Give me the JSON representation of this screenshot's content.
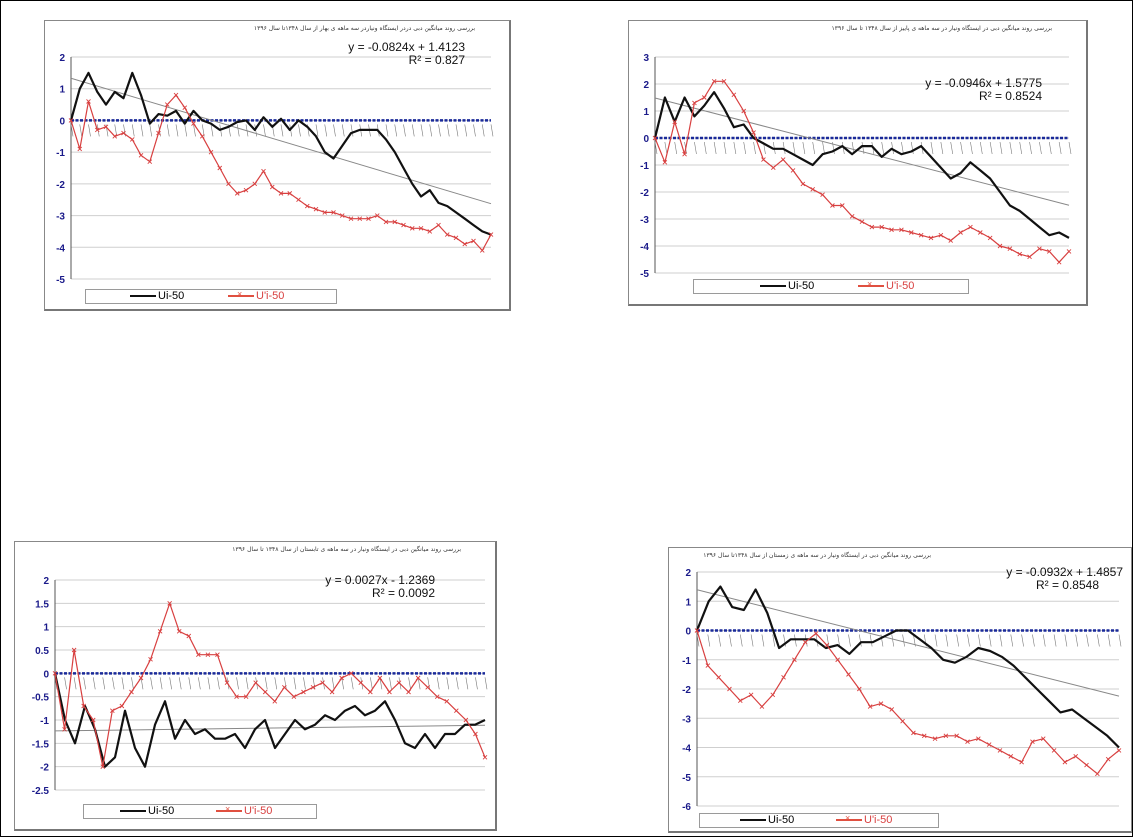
{
  "chart_data": [
    {
      "type": "line",
      "title": "بررسی روند میانگین دبی دردر ایستگاه ونیاردر سه ماهه ی بهار از سال ۱۳۴۸تا سال ۱۳۹۶",
      "ylim": [
        -5,
        2
      ],
      "yticks": [
        "2",
        "1",
        "0",
        "-1",
        "-2",
        "-3",
        "-4",
        "-5"
      ],
      "equation": "y = -0.0824x + 1.4123",
      "r2": "R² = 0.827",
      "trend": {
        "slope": -0.0824,
        "intercept": 1.4123
      },
      "grid": true,
      "legend": "bottom",
      "series": [
        {
          "name": "Ui-50",
          "color": "#111111",
          "values": [
            0,
            1.0,
            1.5,
            0.9,
            0.5,
            0.9,
            0.7,
            1.5,
            0.8,
            -0.1,
            0.2,
            0.15,
            0.3,
            -0.1,
            0.3,
            0.0,
            -0.1,
            -0.3,
            -0.2,
            -0.05,
            0.0,
            -0.3,
            0.1,
            -0.2,
            0.05,
            -0.3,
            0.0,
            -0.2,
            -0.5,
            -1.0,
            -1.2,
            -0.8,
            -0.4,
            -0.3,
            -0.3,
            -0.3,
            -0.6,
            -1.0,
            -1.5,
            -2.0,
            -2.4,
            -2.2,
            -2.6,
            -2.7,
            -2.9,
            -3.1,
            -3.3,
            -3.5,
            -3.6
          ]
        },
        {
          "name": "U'i-50",
          "color": "#d84040",
          "values": [
            0,
            -0.9,
            0.6,
            -0.3,
            -0.2,
            -0.5,
            -0.4,
            -0.6,
            -1.1,
            -1.3,
            -0.4,
            0.5,
            0.8,
            0.4,
            -0.1,
            -0.5,
            -1.0,
            -1.5,
            -2.0,
            -2.3,
            -2.2,
            -2.0,
            -1.6,
            -2.1,
            -2.3,
            -2.3,
            -2.5,
            -2.7,
            -2.8,
            -2.9,
            -2.9,
            -3.0,
            -3.1,
            -3.1,
            -3.1,
            -3.0,
            -3.2,
            -3.2,
            -3.3,
            -3.4,
            -3.4,
            -3.5,
            -3.3,
            -3.6,
            -3.7,
            -3.9,
            -3.8,
            -4.1,
            -3.6
          ]
        }
      ]
    },
    {
      "type": "line",
      "title": "بررسی روند میانگین دبی در ایستگاه ونیار در سه ماهه ی پاییز از سال ۱۳۴۸ تا سال ۱۳۹۶",
      "ylim": [
        -5,
        3
      ],
      "yticks": [
        "3",
        "2",
        "1",
        "0",
        "-1",
        "-2",
        "-3",
        "-4",
        "-5"
      ],
      "equation": "y = -0.0946x + 1.5775",
      "r2": "R² = 0.8524",
      "trend": {
        "slope": -0.0946,
        "intercept": 1.5775
      },
      "grid": true,
      "legend": "bottom",
      "series": [
        {
          "name": "Ui-50",
          "color": "#111111",
          "values": [
            0,
            1.5,
            0.6,
            1.5,
            0.8,
            1.2,
            1.7,
            1.1,
            0.4,
            0.5,
            0.0,
            -0.2,
            -0.4,
            -0.4,
            -0.6,
            -0.8,
            -1.0,
            -0.6,
            -0.5,
            -0.3,
            -0.6,
            -0.3,
            -0.3,
            -0.7,
            -0.4,
            -0.6,
            -0.5,
            -0.3,
            -0.7,
            -1.1,
            -1.5,
            -1.3,
            -0.9,
            -1.2,
            -1.5,
            -2.0,
            -2.5,
            -2.7,
            -3.0,
            -3.3,
            -3.6,
            -3.5,
            -3.7
          ]
        },
        {
          "name": "U'i-50",
          "color": "#d84040",
          "values": [
            0,
            -0.9,
            0.6,
            -0.6,
            1.3,
            1.5,
            2.1,
            2.1,
            1.6,
            1.0,
            0.2,
            -0.8,
            -1.1,
            -0.8,
            -1.2,
            -1.7,
            -1.9,
            -2.1,
            -2.5,
            -2.5,
            -2.9,
            -3.1,
            -3.3,
            -3.3,
            -3.4,
            -3.4,
            -3.5,
            -3.6,
            -3.7,
            -3.6,
            -3.8,
            -3.5,
            -3.3,
            -3.5,
            -3.7,
            -4.0,
            -4.1,
            -4.3,
            -4.4,
            -4.1,
            -4.2,
            -4.6,
            -4.2
          ]
        }
      ]
    },
    {
      "type": "line",
      "title": "بررسی روند میانگین دبی در ایستگاه ونیار در سه ماهه ی تابستان از سال ۱۳۴۸ تا سال ۱۳۹۶",
      "ylim": [
        -2.5,
        2
      ],
      "yticks": [
        "2",
        "1.5",
        "1",
        "0.5",
        "0",
        "-0.5",
        "-1",
        "-1.5",
        "-2",
        "-2.5"
      ],
      "equation": "y = 0.0027x - 1.2369",
      "r2": "R² = 0.0092",
      "trend": {
        "slope": 0.0027,
        "intercept": -1.2369
      },
      "grid": true,
      "legend": "bottom",
      "series": [
        {
          "name": "Ui-50",
          "color": "#111111",
          "values": [
            0,
            -1.0,
            -1.5,
            -0.7,
            -1.2,
            -2.0,
            -1.8,
            -0.8,
            -1.6,
            -2.0,
            -1.1,
            -0.6,
            -1.4,
            -1.0,
            -1.3,
            -1.2,
            -1.4,
            -1.4,
            -1.3,
            -1.6,
            -1.2,
            -1.0,
            -1.6,
            -1.3,
            -1.0,
            -1.2,
            -1.1,
            -0.9,
            -1.0,
            -0.8,
            -0.7,
            -0.9,
            -0.8,
            -0.6,
            -1.0,
            -1.5,
            -1.6,
            -1.3,
            -1.6,
            -1.3,
            -1.3,
            -1.1,
            -1.1,
            -1.0
          ]
        },
        {
          "name": "U'i-50",
          "color": "#d84040",
          "values": [
            0,
            -1.2,
            0.5,
            -0.7,
            -1.0,
            -2.0,
            -0.8,
            -0.7,
            -0.4,
            -0.1,
            0.3,
            0.9,
            1.5,
            0.9,
            0.8,
            0.4,
            0.4,
            0.4,
            -0.2,
            -0.5,
            -0.5,
            -0.2,
            -0.4,
            -0.6,
            -0.3,
            -0.5,
            -0.4,
            -0.3,
            -0.2,
            -0.4,
            -0.1,
            0.0,
            -0.2,
            -0.4,
            -0.1,
            -0.4,
            -0.2,
            -0.4,
            -0.1,
            -0.3,
            -0.5,
            -0.6,
            -0.8,
            -1.0,
            -1.3,
            -1.8
          ]
        }
      ]
    },
    {
      "type": "line",
      "title": "بررسی روند میانگین دبی در ایستگاه ونیار در سه ماهه ی زمستان از سال ۱۳۴۸تا سال ۱۳۹۶",
      "ylim": [
        -6,
        2
      ],
      "yticks": [
        "2",
        "1",
        "0",
        "-1",
        "-2",
        "-3",
        "-4",
        "-5",
        "-6"
      ],
      "equation": "y = -0.0932x + 1.4857",
      "r2": "R² = 0.8548",
      "trend": {
        "slope": -0.0932,
        "intercept": 1.4857
      },
      "grid": true,
      "legend": "bottom",
      "series": [
        {
          "name": "Ui-50",
          "color": "#111111",
          "values": [
            0,
            1.0,
            1.5,
            0.8,
            0.7,
            1.4,
            0.6,
            -0.6,
            -0.3,
            -0.3,
            -0.3,
            -0.6,
            -0.5,
            -0.8,
            -0.4,
            -0.4,
            -0.2,
            0.0,
            0.0,
            -0.3,
            -0.6,
            -1.0,
            -1.1,
            -0.9,
            -0.6,
            -0.7,
            -0.9,
            -1.2,
            -1.6,
            -2.0,
            -2.4,
            -2.8,
            -2.7,
            -3.0,
            -3.3,
            -3.6,
            -4.0
          ]
        },
        {
          "name": "U'i-50",
          "color": "#d84040",
          "values": [
            0,
            -1.2,
            -1.6,
            -2.0,
            -2.4,
            -2.2,
            -2.6,
            -2.2,
            -1.6,
            -1.0,
            -0.4,
            -0.1,
            -0.5,
            -1.0,
            -1.5,
            -2.0,
            -2.6,
            -2.5,
            -2.7,
            -3.1,
            -3.5,
            -3.6,
            -3.7,
            -3.6,
            -3.6,
            -3.8,
            -3.7,
            -3.9,
            -4.1,
            -4.3,
            -4.5,
            -3.8,
            -3.7,
            -4.1,
            -4.5,
            -4.3,
            -4.6,
            -4.9,
            -4.4,
            -4.1
          ]
        }
      ]
    }
  ]
}
